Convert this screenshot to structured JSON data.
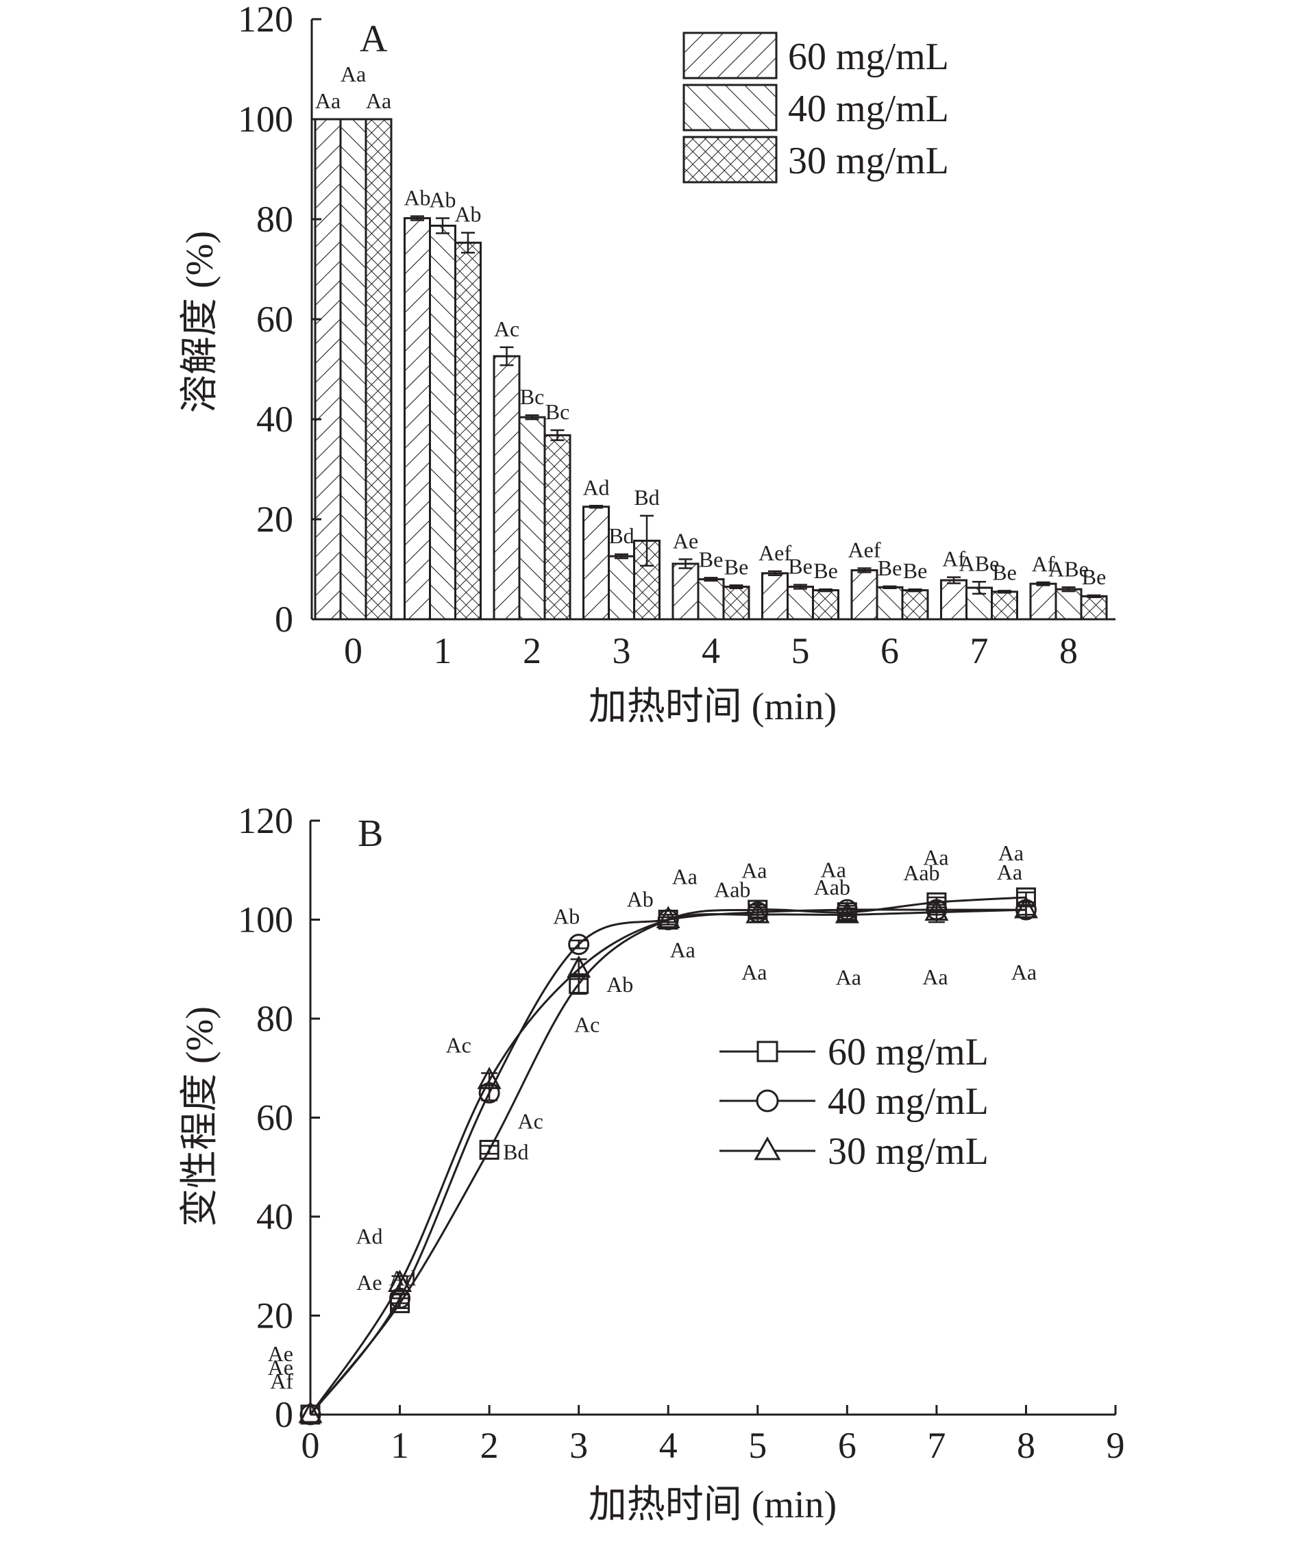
{
  "colors": {
    "ink": "#231f20",
    "background": "#ffffff"
  },
  "chart_data": [
    {
      "panel": "A",
      "type": "bar",
      "ylabel": "溶解度 (%)",
      "xlabel": "加热时间 (min)",
      "ylim": [
        0,
        120
      ],
      "yticks": [
        "0",
        "20",
        "40",
        "60",
        "80",
        "100",
        "120"
      ],
      "categories": [
        "0",
        "1",
        "2",
        "3",
        "4",
        "5",
        "6",
        "7",
        "8"
      ],
      "legend_position": "top-right",
      "series": [
        {
          "name": "60 mg/mL",
          "pattern": "hatch-forward",
          "values": [
            100,
            80.2,
            52.6,
            22.5,
            11.1,
            9.2,
            9.8,
            7.8,
            7.1
          ],
          "errors": [
            0,
            0.4,
            1.8,
            0.2,
            0.9,
            0.4,
            0.4,
            0.6,
            0.3
          ],
          "labels": [
            "Aa",
            "Ab",
            "Ac",
            "Ad",
            "Ae",
            "Aef",
            "Aef",
            "Af",
            "Af"
          ]
        },
        {
          "name": "40 mg/mL",
          "pattern": "hatch-back",
          "values": [
            100,
            78.7,
            40.4,
            12.6,
            8.0,
            6.5,
            6.4,
            6.3,
            6.0
          ],
          "errors": [
            0,
            1.5,
            0.4,
            0.4,
            0.3,
            0.4,
            0.2,
            1.2,
            0.4
          ],
          "labels": [
            "Aa",
            "Ab",
            "Bc",
            "Bd",
            "Be",
            "Be",
            "Be",
            "ABe",
            "ABe"
          ]
        },
        {
          "name": "30 mg/mL",
          "pattern": "crosshatch",
          "values": [
            100,
            75.3,
            36.8,
            15.7,
            6.5,
            5.8,
            5.8,
            5.5,
            4.6
          ],
          "errors": [
            0,
            2.0,
            1.0,
            5.0,
            0.3,
            0.2,
            0.2,
            0.2,
            0.2
          ],
          "labels": [
            "Aa",
            "Ab",
            "Bc",
            "Bd",
            "Be",
            "Be",
            "Be",
            "Be",
            "Be"
          ]
        }
      ]
    },
    {
      "panel": "B",
      "type": "line",
      "ylabel": "变性程度 (%)",
      "xlabel": "加热时间 (min)",
      "xlim": [
        0,
        9
      ],
      "ylim": [
        0,
        120
      ],
      "xticks": [
        "0",
        "1",
        "2",
        "3",
        "4",
        "5",
        "6",
        "7",
        "8",
        "9"
      ],
      "yticks": [
        "0",
        "20",
        "40",
        "60",
        "80",
        "100",
        "120"
      ],
      "x": [
        0,
        1,
        2,
        3,
        4,
        5,
        6,
        7,
        8
      ],
      "legend_position": "center-right",
      "series": [
        {
          "name": "60 mg/mL",
          "marker": "square",
          "values": [
            0,
            22.5,
            53.5,
            87.0,
            100.0,
            102.0,
            101.5,
            103.5,
            104.5
          ],
          "errors": [
            0,
            1.0,
            0.8,
            2.0,
            0.5,
            1.0,
            0.8,
            1.0,
            1.0
          ],
          "labels": [
            "Af",
            "Ad",
            "Bd",
            "Ac",
            "Aa",
            "Aa",
            "Aa",
            "Aa",
            "Aa"
          ]
        },
        {
          "name": "40 mg/mL",
          "marker": "circle",
          "values": [
            0,
            23.5,
            65.0,
            95.0,
            100.0,
            101.5,
            102.0,
            102.0,
            102.0
          ],
          "errors": [
            0,
            1.0,
            1.5,
            0.8,
            0.5,
            1.0,
            0.8,
            1.0,
            1.0
          ],
          "labels": [
            "Ae",
            "Ae",
            "Ac",
            "Ab",
            "Ab",
            "Aab",
            "Aab",
            "Aab",
            "Aa"
          ]
        },
        {
          "name": "30 mg/mL",
          "marker": "triangle",
          "values": [
            0,
            26.5,
            67.5,
            90.0,
            100.0,
            101.0,
            101.0,
            101.5,
            102.0
          ],
          "errors": [
            0,
            1.5,
            1.5,
            2.0,
            1.0,
            1.5,
            1.0,
            2.0,
            1.5
          ],
          "labels": [
            "Ae",
            "Ad",
            "Ac",
            "Ab",
            "Aa",
            "Aa",
            "Aa",
            "Aa",
            "Aa"
          ]
        }
      ]
    }
  ]
}
